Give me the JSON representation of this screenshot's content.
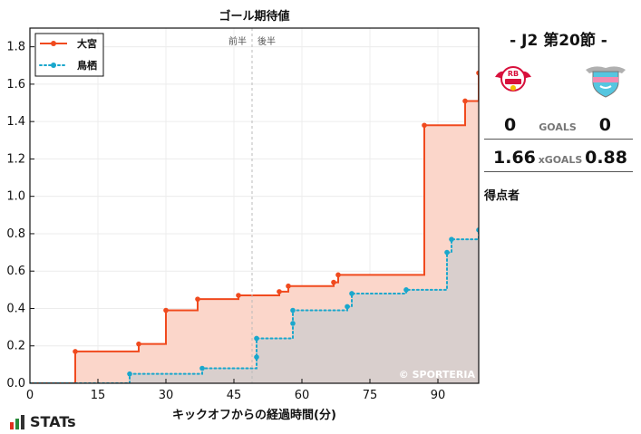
{
  "chart_data": {
    "type": "line",
    "title": "ゴール期待値",
    "xlabel": "キックオフからの経過時間(分)",
    "ylabel": "",
    "xlim": [
      0,
      99
    ],
    "ylim": [
      0,
      1.9
    ],
    "xticks": [
      0,
      15,
      30,
      45,
      60,
      75,
      90
    ],
    "yticks": [
      0.0,
      0.2,
      0.4,
      0.6,
      0.8,
      1.0,
      1.2,
      1.4,
      1.6,
      1.8
    ],
    "half_line_x": 49,
    "half_labels": [
      "前半",
      "後半"
    ],
    "legend_position": "top-left",
    "watermark": "© SPORTERIA",
    "series": [
      {
        "name": "大宮",
        "color": "#f04a1e",
        "fill": "#fbd6ca",
        "style": "solid",
        "points": [
          [
            10,
            0.17
          ],
          [
            24,
            0.21
          ],
          [
            30,
            0.39
          ],
          [
            37,
            0.45
          ],
          [
            46,
            0.47
          ],
          [
            55,
            0.49
          ],
          [
            57,
            0.52
          ],
          [
            67,
            0.54
          ],
          [
            68,
            0.58
          ],
          [
            87,
            1.38
          ],
          [
            96,
            1.51
          ],
          [
            99,
            1.66
          ]
        ]
      },
      {
        "name": "鳥栖",
        "color": "#1aa7cc",
        "fill": "#d7cfcc",
        "style": "dotted",
        "points": [
          [
            22,
            0.05
          ],
          [
            38,
            0.08
          ],
          [
            50,
            0.14
          ],
          [
            50,
            0.24
          ],
          [
            58,
            0.32
          ],
          [
            58,
            0.39
          ],
          [
            70,
            0.41
          ],
          [
            71,
            0.48
          ],
          [
            83,
            0.5
          ],
          [
            92,
            0.7
          ],
          [
            93,
            0.77
          ],
          [
            99,
            0.82
          ],
          [
            100,
            0.87
          ],
          [
            101,
            0.88
          ]
        ]
      }
    ]
  },
  "match": {
    "title": "- J2 第20節 -",
    "home_goals": "0",
    "away_goals": "0",
    "goals_label": "GOALS",
    "home_xg": "1.66",
    "away_xg": "0.88",
    "xg_label": "xGOALS",
    "scorers_label": "得点者",
    "home_crest_text": "RB",
    "home_color": "#d8103c",
    "away_color": "#55c6e0"
  },
  "footer": {
    "logo_text": "STATs"
  }
}
